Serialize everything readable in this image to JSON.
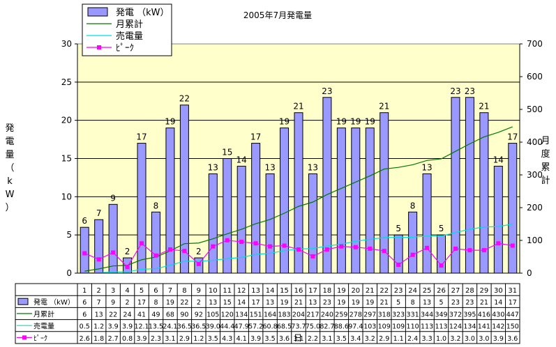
{
  "chart_data": {
    "type": "bar",
    "title": "2005年7月発電量",
    "xlabel": "日",
    "ylabel": "発電量（kW）",
    "y2label": "月度累計",
    "ylim": [
      0,
      30
    ],
    "y2lim": [
      0,
      700
    ],
    "yticks": [
      0,
      5,
      10,
      15,
      20,
      25,
      30
    ],
    "y2ticks": [
      0,
      100,
      200,
      300,
      400,
      500,
      600,
      700
    ],
    "grid": true,
    "legend_position": "top-left",
    "categories": [
      "1",
      "2",
      "3",
      "4",
      "5",
      "6",
      "7",
      "8",
      "9",
      "10",
      "11",
      "12",
      "13",
      "14",
      "15",
      "16",
      "17",
      "18",
      "19",
      "20",
      "21",
      "22",
      "23",
      "24",
      "25",
      "26",
      "27",
      "28",
      "29",
      "30",
      "31"
    ],
    "series": [
      {
        "name": "発電 （kW）",
        "kind": "bar",
        "axis": "left",
        "color": "#9999ff",
        "values": [
          6,
          7,
          9,
          2,
          17,
          8,
          19,
          22,
          2,
          13,
          15,
          14,
          17,
          13,
          19,
          21,
          13,
          23,
          19,
          19,
          19,
          21,
          5,
          8,
          13,
          5,
          23,
          23,
          21,
          14,
          17
        ]
      },
      {
        "name": "月累計",
        "kind": "line",
        "axis": "right",
        "color": "#007700",
        "values": [
          6,
          13,
          22,
          24,
          41,
          49,
          68,
          90,
          92,
          105,
          120,
          134,
          151,
          164,
          183,
          204,
          217,
          240,
          259,
          278,
          297,
          318,
          323,
          331,
          344,
          349,
          372,
          395,
          416,
          430,
          447
        ]
      },
      {
        "name": "売電量",
        "kind": "line",
        "axis": "right",
        "color": "#00dddd",
        "values": [
          0.5,
          1.2,
          3.9,
          3.9,
          12.1,
          13.5,
          24.1,
          36.5,
          36.5,
          39.0,
          44.4,
          47.9,
          57.2,
          60.8,
          68.5,
          73.7,
          75.0,
          82.7,
          88.6,
          97.4,
          103,
          109,
          109,
          110,
          113,
          113,
          124,
          134,
          141,
          142,
          150
        ]
      },
      {
        "name": "ﾋﾟｰｸ",
        "kind": "line",
        "axis": "left",
        "color": "#ff00ff",
        "values": [
          2.6,
          1.8,
          2.7,
          0.8,
          3.9,
          2.3,
          3.1,
          2.9,
          1.2,
          3.5,
          4.3,
          4.1,
          3.9,
          3.5,
          3.6,
          3.1,
          2.2,
          3.1,
          3.5,
          3.4,
          3.2,
          2.9,
          1.1,
          2.4,
          3.3,
          1.0,
          3.2,
          3.0,
          3.0,
          3.9,
          3.6
        ]
      }
    ],
    "table_rows": [
      [
        "6",
        "7",
        "9",
        "2",
        "17",
        "8",
        "19",
        "22",
        "2",
        "13",
        "15",
        "14",
        "17",
        "13",
        "19",
        "21",
        "13",
        "23",
        "19",
        "19",
        "19",
        "21",
        "5",
        "8",
        "13",
        "5",
        "23",
        "23",
        "21",
        "14",
        "17"
      ],
      [
        "6",
        "13",
        "22",
        "24",
        "41",
        "49",
        "68",
        "90",
        "92",
        "105",
        "120",
        "134",
        "151",
        "164",
        "183",
        "204",
        "217",
        "240",
        "259",
        "278",
        "297",
        "318",
        "323",
        "331",
        "344",
        "349",
        "372",
        "395",
        "416",
        "430",
        "447"
      ],
      [
        "0.5",
        "1.2",
        "3.9",
        "3.9",
        "12.1",
        "13.5",
        "24.1",
        "36.5",
        "36.5",
        "39.0",
        "44.4",
        "47.9",
        "57.2",
        "60.8",
        "68.5",
        "73.7",
        "75.0",
        "82.7",
        "88.6",
        "97.4",
        "103",
        "109",
        "109",
        "110",
        "113",
        "113",
        "124",
        "134",
        "141",
        "142",
        "150"
      ],
      [
        "2.6",
        "1.8",
        "2.7",
        "0.8",
        "3.9",
        "2.3",
        "3.1",
        "2.9",
        "1.2",
        "3.5",
        "4.3",
        "4.1",
        "3.9",
        "3.5",
        "3.6",
        "3.1",
        "2.2",
        "3.1",
        "3.5",
        "3.4",
        "3.2",
        "2.9",
        "1.1",
        "2.4",
        "3.3",
        "1.0",
        "3.2",
        "3.0",
        "3.0",
        "3.9",
        "3.6"
      ]
    ]
  }
}
